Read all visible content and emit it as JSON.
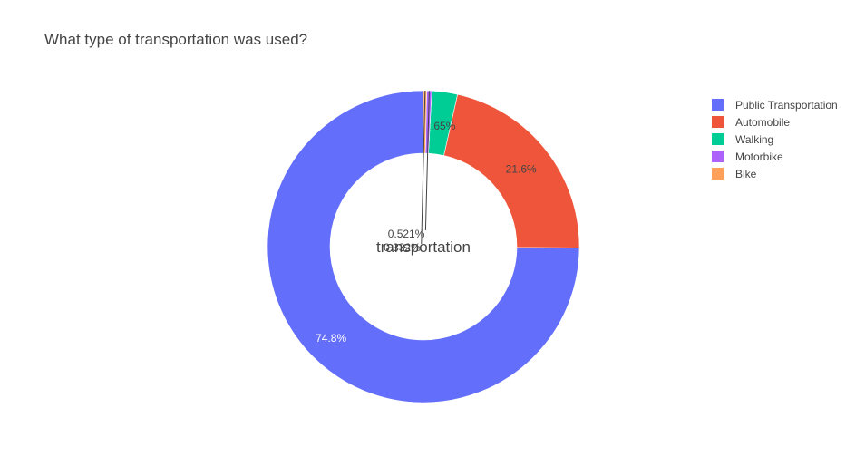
{
  "chart_data": {
    "type": "pie",
    "hole": true,
    "title": "What type of transportation was used?",
    "center_label": "transportation",
    "slices": [
      {
        "label": "Public Transportation",
        "value": 74.8,
        "text": "74.8%",
        "color": "#636efa",
        "label_position": "inside",
        "label_color": "#ffffff"
      },
      {
        "label": "Automobile",
        "value": 21.6,
        "text": "21.6%",
        "color": "#ef553b",
        "label_position": "inside",
        "label_color": "#444444"
      },
      {
        "label": "Walking",
        "value": 2.65,
        "text": "2.65%",
        "color": "#00cc96",
        "label_position": "inside",
        "label_color": "#444444"
      },
      {
        "label": "Motorbike",
        "value": 0.521,
        "text": "0.521%",
        "color": "#ab63fa",
        "label_position": "outside",
        "label_color": "#444444"
      },
      {
        "label": "Bike",
        "value": 0.332,
        "text": "0.332%",
        "color": "#ffa15a",
        "label_position": "outside",
        "label_color": "#444444"
      }
    ],
    "legend": "right"
  }
}
